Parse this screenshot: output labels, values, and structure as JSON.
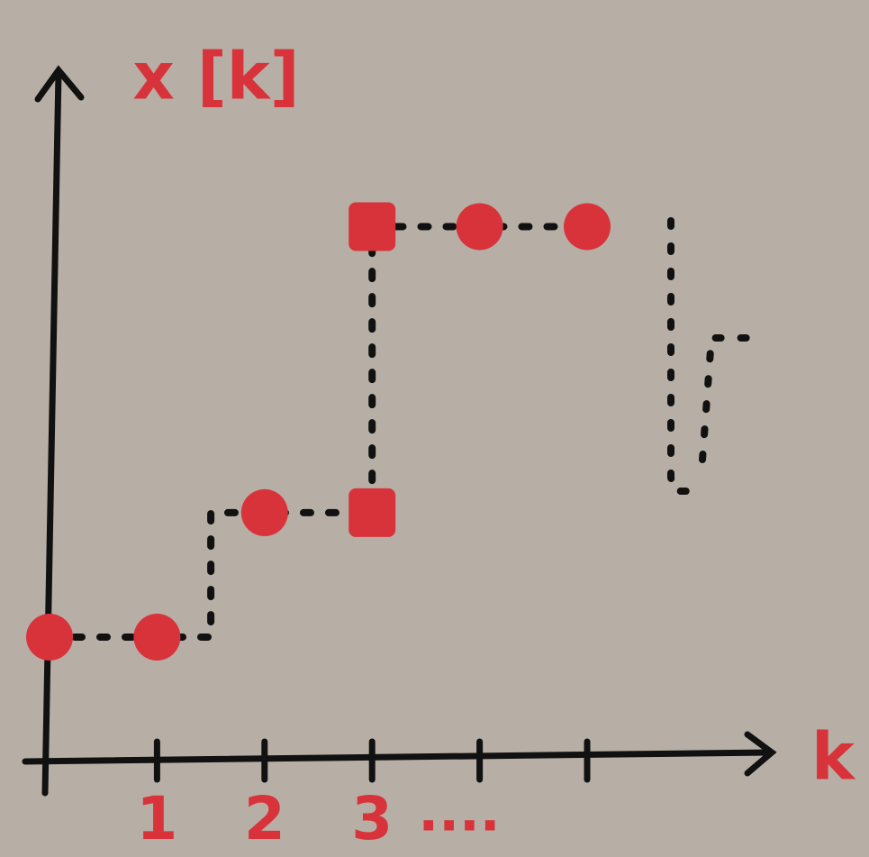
{
  "chart_data": {
    "type": "scatter",
    "ylabel": "x [k]",
    "xlabel": "k",
    "x": [
      0,
      1,
      2,
      3,
      3,
      4,
      5
    ],
    "values": [
      1,
      1,
      2,
      2,
      4.3,
      4.3,
      4.3
    ],
    "markers": [
      "circle",
      "circle",
      "circle",
      "square",
      "square",
      "circle",
      "circle"
    ],
    "color": "#d8333b",
    "xlim": [
      0,
      6.7
    ],
    "ylim": [
      0,
      5.6
    ],
    "xticks": [
      1,
      2,
      3,
      {
        "value": 4,
        "label": null
      },
      {
        "value": 5,
        "label": null
      }
    ],
    "annotation": "....",
    "line_style": "dashed-step"
  }
}
